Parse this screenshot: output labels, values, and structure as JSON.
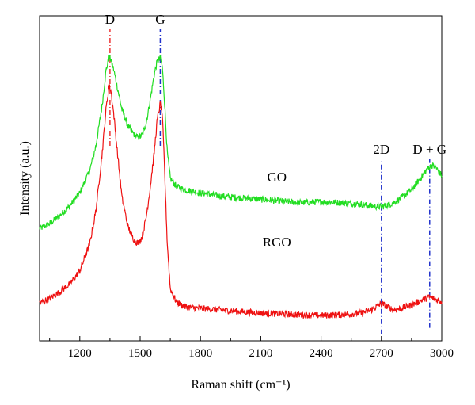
{
  "chart_data": {
    "type": "line",
    "title": "",
    "xlabel": "Raman shift (cm⁻¹)",
    "ylabel": "Intensity (a.u.)",
    "xlim": [
      1000,
      3000
    ],
    "ylim": [
      0,
      1
    ],
    "x_ticks": [
      1200,
      1500,
      1800,
      2100,
      2400,
      2700,
      3000
    ],
    "x_tick_labels": [
      "1200",
      "1500",
      "1800",
      "2100",
      "2400",
      "2700",
      "3000"
    ],
    "y_ticks_shown": false,
    "grid": false,
    "colors": {
      "GO": "#22dd22",
      "RGO": "#ee1111",
      "marker_D": "#ee3333",
      "marker_blue": "#2233cc"
    },
    "series": [
      {
        "name": "GO",
        "x": [
          1000,
          1050,
          1100,
          1150,
          1200,
          1250,
          1280,
          1310,
          1330,
          1345,
          1355,
          1370,
          1390,
          1410,
          1440,
          1470,
          1490,
          1510,
          1530,
          1550,
          1570,
          1585,
          1600,
          1610,
          1620,
          1635,
          1650,
          1680,
          1720,
          1800,
          1900,
          2000,
          2100,
          2200,
          2300,
          2400,
          2500,
          2600,
          2650,
          2700,
          2750,
          2800,
          2850,
          2900,
          2930,
          2950,
          2970,
          2990,
          3000
        ],
        "y": [
          0.345,
          0.36,
          0.385,
          0.415,
          0.455,
          0.525,
          0.6,
          0.72,
          0.83,
          0.872,
          0.865,
          0.83,
          0.77,
          0.71,
          0.66,
          0.635,
          0.625,
          0.633,
          0.67,
          0.74,
          0.82,
          0.86,
          0.87,
          0.845,
          0.75,
          0.58,
          0.5,
          0.475,
          0.465,
          0.455,
          0.445,
          0.44,
          0.435,
          0.43,
          0.425,
          0.428,
          0.425,
          0.42,
          0.415,
          0.412,
          0.422,
          0.44,
          0.465,
          0.505,
          0.53,
          0.54,
          0.535,
          0.515,
          0.51
        ]
      },
      {
        "name": "RGO",
        "x": [
          1000,
          1050,
          1100,
          1150,
          1200,
          1250,
          1280,
          1310,
          1330,
          1345,
          1355,
          1370,
          1390,
          1410,
          1440,
          1470,
          1490,
          1510,
          1530,
          1550,
          1570,
          1585,
          1600,
          1610,
          1620,
          1635,
          1650,
          1680,
          1720,
          1800,
          1900,
          2000,
          2100,
          2200,
          2300,
          2400,
          2500,
          2600,
          2650,
          2700,
          2730,
          2760,
          2800,
          2850,
          2900,
          2940,
          2960,
          2980,
          3000
        ],
        "y": [
          0.117,
          0.13,
          0.15,
          0.175,
          0.215,
          0.3,
          0.4,
          0.57,
          0.71,
          0.785,
          0.77,
          0.69,
          0.56,
          0.44,
          0.35,
          0.31,
          0.3,
          0.32,
          0.38,
          0.47,
          0.58,
          0.68,
          0.73,
          0.7,
          0.55,
          0.3,
          0.16,
          0.12,
          0.105,
          0.1,
          0.095,
          0.09,
          0.085,
          0.083,
          0.08,
          0.078,
          0.08,
          0.085,
          0.095,
          0.115,
          0.105,
          0.095,
          0.1,
          0.11,
          0.125,
          0.135,
          0.13,
          0.125,
          0.12
        ]
      }
    ],
    "series_labels": [
      {
        "text": "GO",
        "x": 2180,
        "y": 0.49
      },
      {
        "text": "RGO",
        "x": 2180,
        "y": 0.29
      }
    ],
    "markers": [
      {
        "label": "D",
        "x": 1350,
        "color": "marker_D",
        "y_from": 0.6,
        "y_to": 1.0
      },
      {
        "label": "G",
        "x": 1600,
        "color": "marker_blue",
        "y_from": 0.6,
        "y_to": 1.0
      },
      {
        "label": "2D",
        "x": 2700,
        "color": "marker_blue",
        "y_from": 0.02,
        "y_to": 0.6
      },
      {
        "label": "D + G",
        "x": 2940,
        "color": "marker_blue",
        "y_from": 0.04,
        "y_to": 0.6
      }
    ]
  }
}
